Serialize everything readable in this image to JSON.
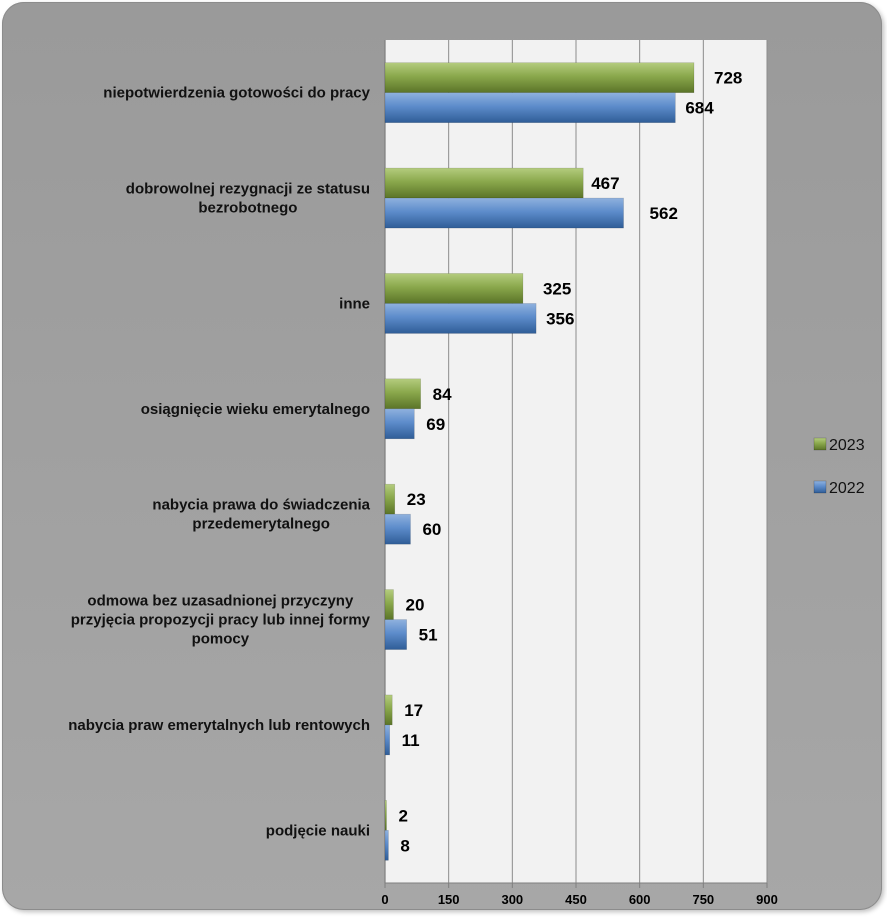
{
  "chart_data": {
    "type": "bar",
    "orientation": "horizontal",
    "categories": [
      [
        "niepotwierdzenia gotowości do pracy"
      ],
      [
        "dobrowolnej rezygnacji ze statusu",
        "bezrobotnego"
      ],
      [
        "inne"
      ],
      [
        "osiągnięcie wieku emerytalnego"
      ],
      [
        "nabycia prawa do świadczenia",
        "przedemerytalnego"
      ],
      [
        "odmowa bez uzasadnionej przyczyny",
        "przyjęcia propozycji pracy lub innej formy",
        "pomocy"
      ],
      [
        "nabycia praw emerytalnych lub rentowych"
      ],
      [
        "podjęcie nauki"
      ]
    ],
    "series": [
      {
        "name": "2023",
        "color": "#77933C",
        "values": [
          728,
          467,
          325,
          84,
          23,
          20,
          17,
          2
        ]
      },
      {
        "name": "2022",
        "color": "#4F81BD",
        "values": [
          684,
          562,
          356,
          69,
          60,
          51,
          11,
          8
        ]
      }
    ],
    "xlim": [
      0,
      900
    ],
    "xticks": [
      0,
      150,
      300,
      450,
      600,
      750,
      900
    ],
    "grid": true,
    "legend_position": "right",
    "data_labels": true
  }
}
